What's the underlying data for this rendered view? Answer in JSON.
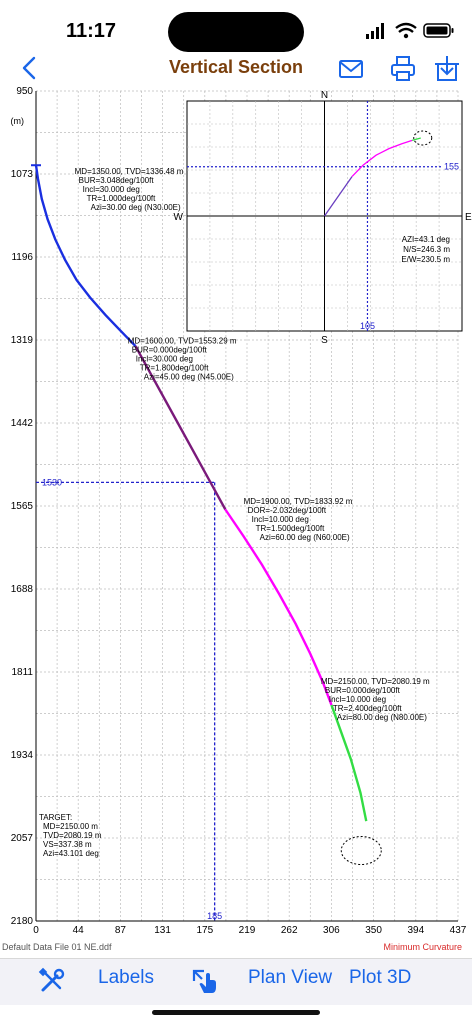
{
  "status": {
    "time": "11:17"
  },
  "nav": {
    "title": "Vertical Section"
  },
  "toolbar": {
    "labels": "Labels",
    "plan_view": "Plan View",
    "plot_3d": "Plot 3D"
  },
  "footer": {
    "file": "Default Data File 01 NE.ddf",
    "method": "Minimum Curvature"
  },
  "chart_data": {
    "type": "line",
    "ylabel": "(m)",
    "xlim": [
      0,
      437
    ],
    "ylim": [
      950,
      2180
    ],
    "y_inverted": true,
    "grid": true,
    "x_ticks": [
      "0",
      "44",
      "87",
      "131",
      "175",
      "219",
      "262",
      "306",
      "350",
      "394",
      "437"
    ],
    "y_ticks": [
      "950",
      "1073",
      "1196",
      "1319",
      "1442",
      "1565",
      "1688",
      "1811",
      "1934",
      "2057",
      "2180"
    ],
    "series": [
      {
        "color": "#1a2fe0",
        "x": [
          0,
          2,
          6,
          12,
          20,
          30,
          42,
          56,
          72,
          88,
          103
        ],
        "y": [
          1060,
          1080,
          1110,
          1140,
          1170,
          1200,
          1230,
          1256,
          1282,
          1306,
          1328
        ]
      },
      {
        "color": "#7a1a7a",
        "x": [
          103,
          123,
          143,
          163,
          183,
          196
        ],
        "y": [
          1328,
          1380,
          1432,
          1484,
          1536,
          1570
        ]
      },
      {
        "color": "#ff00ff",
        "x": [
          196,
          215,
          234,
          252,
          269,
          284,
          297,
          306
        ],
        "y": [
          1570,
          1610,
          1652,
          1696,
          1740,
          1784,
          1826,
          1860
        ]
      },
      {
        "color": "#33dd44",
        "x": [
          306,
          316,
          326,
          336,
          342
        ],
        "y": [
          1860,
          1900,
          1940,
          1990,
          2032
        ]
      }
    ],
    "markers": [
      {
        "x": 0,
        "y": 1060,
        "color": "#1a2fe0"
      }
    ],
    "target_ellipse": {
      "x": 342,
      "y": 2080,
      "color": "#000000"
    },
    "crosshair": {
      "x": 185,
      "y": 1530,
      "x_label": "185",
      "y_label": "1530",
      "color": "#2222cc"
    },
    "annotations": [
      {
        "x": 40,
        "y": 1073,
        "lines": [
          "MD=1350.00, TVD=1336.48 m",
          "BUR=3.048deg/100ft",
          "Incl=30.000 deg",
          "TR=1.000deg/100ft",
          "Azi=30.00 deg (N30.00E)"
        ]
      },
      {
        "x": 95,
        "y": 1324,
        "lines": [
          "MD=1600.00, TVD=1553.29 m",
          "BUR=0.000deg/100ft",
          "Incl=30.000 deg",
          "TR=1.800deg/100ft",
          "Azi=45.00 deg (N45.00E)"
        ]
      },
      {
        "x": 215,
        "y": 1562,
        "lines": [
          "MD=1900.00, TVD=1833.92 m",
          "DOR=-2.032deg/100ft",
          "Incl=10.000 deg",
          "TR=1.500deg/100ft",
          "Azi=60.00 deg (N60.00E)"
        ]
      },
      {
        "x": 295,
        "y": 1829,
        "lines": [
          "MD=2150.00, TVD=2080.19 m",
          "BUR=0.000deg/100ft",
          "Incl=10.000 deg",
          "TR=2.400deg/100ft",
          "Azi=80.00 deg (N80.00E)"
        ]
      }
    ],
    "target": {
      "lines": [
        "TARGET:",
        "MD=2150.00 m",
        "TVD=2080.19 m",
        "VS=337.38 m",
        "Azi=43.101 deg"
      ]
    },
    "inset": {
      "type": "line",
      "compass": {
        "n": "N",
        "s": "S",
        "e": "E",
        "w": "W"
      },
      "crosshair_x_label": "105",
      "crosshair_y_label": "155",
      "readout": [
        "AZI=43.1 deg",
        "N/S=246.3 m",
        "E/W=230.5 m"
      ],
      "series": [
        {
          "color": "#6a3fc0",
          "x": [
            0,
            10,
            20,
            32
          ],
          "y": [
            0,
            15,
            30,
            48
          ]
        },
        {
          "color": "#ff00ff",
          "x": [
            32,
            45,
            60,
            75,
            90,
            102
          ],
          "y": [
            48,
            62,
            74,
            82,
            88,
            92
          ]
        },
        {
          "color": "#33dd44",
          "x": [
            102,
            112
          ],
          "y": [
            92,
            95
          ]
        }
      ],
      "xlim": [
        -160,
        160
      ],
      "ylim": [
        -140,
        140
      ],
      "target_point": {
        "x": 112,
        "y": 95
      },
      "crosshair": {
        "x": 50,
        "y": 60
      }
    }
  }
}
